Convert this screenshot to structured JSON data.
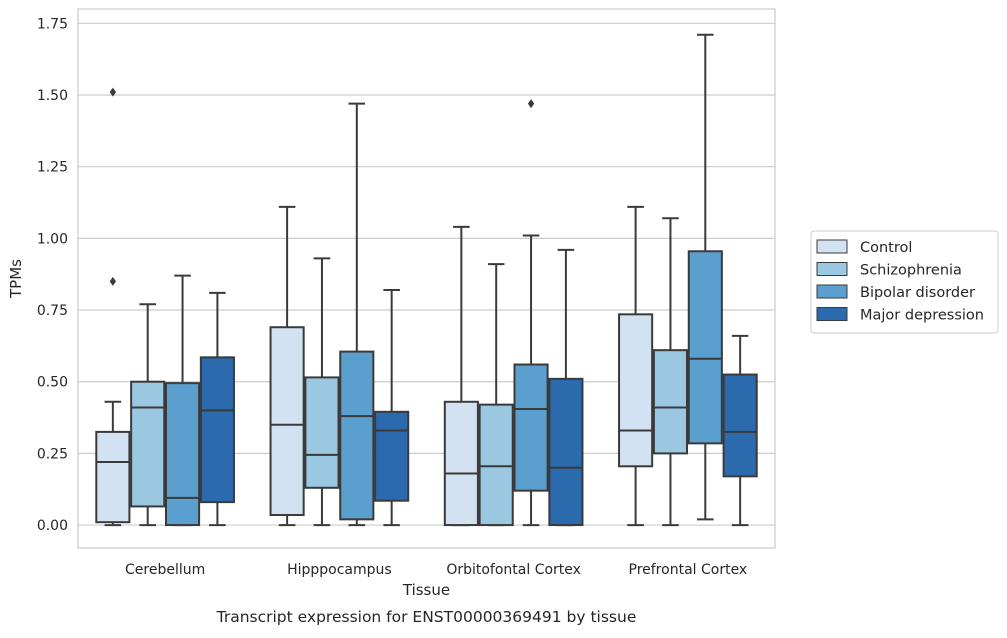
{
  "chart_data": {
    "type": "boxplot",
    "caption": "Transcript expression for ENST00000369491 by tissue",
    "xlabel": "Tissue",
    "ylabel": "TPMs",
    "ylim": [
      -0.08,
      1.8
    ],
    "yticks": [
      "0.00",
      "0.25",
      "0.50",
      "0.75",
      "1.00",
      "1.25",
      "1.50",
      "1.75"
    ],
    "ytick_values": [
      0,
      0.25,
      0.5,
      0.75,
      1.0,
      1.25,
      1.5,
      1.75
    ],
    "grid": true,
    "legend_position": "right",
    "categories": [
      "Cerebellum",
      "Hipppocampus",
      "Orbitofontal Cortex",
      "Prefrontal Cortex"
    ],
    "series": [
      {
        "name": "Control",
        "color": "#d2e2f2",
        "boxes": [
          {
            "whislo": 0.0,
            "q1": 0.01,
            "med": 0.22,
            "q3": 0.325,
            "whishi": 0.43,
            "fliers": [
              0.85,
              1.51
            ]
          },
          {
            "whislo": 0.0,
            "q1": 0.035,
            "med": 0.35,
            "q3": 0.69,
            "whishi": 1.11,
            "fliers": []
          },
          {
            "whislo": 0.0,
            "q1": 0.0,
            "med": 0.18,
            "q3": 0.43,
            "whishi": 1.04,
            "fliers": []
          },
          {
            "whislo": 0.0,
            "q1": 0.205,
            "med": 0.33,
            "q3": 0.735,
            "whishi": 1.11,
            "fliers": []
          }
        ]
      },
      {
        "name": "Schizophrenia",
        "color": "#9ac8e0",
        "boxes": [
          {
            "whislo": 0.0,
            "q1": 0.065,
            "med": 0.41,
            "q3": 0.5,
            "whishi": 0.77,
            "fliers": []
          },
          {
            "whislo": 0.0,
            "q1": 0.13,
            "med": 0.245,
            "q3": 0.515,
            "whishi": 0.93,
            "fliers": []
          },
          {
            "whislo": 0.0,
            "q1": 0.0,
            "med": 0.205,
            "q3": 0.42,
            "whishi": 0.91,
            "fliers": []
          },
          {
            "whislo": 0.0,
            "q1": 0.25,
            "med": 0.41,
            "q3": 0.61,
            "whishi": 1.07,
            "fliers": []
          }
        ]
      },
      {
        "name": "Bipolar disorder",
        "color": "#5a9fcd",
        "boxes": [
          {
            "whislo": 0.0,
            "q1": 0.0,
            "med": 0.095,
            "q3": 0.495,
            "whishi": 0.87,
            "fliers": []
          },
          {
            "whislo": 0.0,
            "q1": 0.02,
            "med": 0.38,
            "q3": 0.605,
            "whishi": 1.47,
            "fliers": []
          },
          {
            "whislo": 0.0,
            "q1": 0.12,
            "med": 0.405,
            "q3": 0.56,
            "whishi": 1.01,
            "fliers": [
              1.47
            ]
          },
          {
            "whislo": 0.02,
            "q1": 0.285,
            "med": 0.58,
            "q3": 0.955,
            "whishi": 1.71,
            "fliers": []
          }
        ]
      },
      {
        "name": "Major depression",
        "color": "#2a6aad",
        "boxes": [
          {
            "whislo": 0.0,
            "q1": 0.08,
            "med": 0.4,
            "q3": 0.585,
            "whishi": 0.81,
            "fliers": []
          },
          {
            "whislo": 0.0,
            "q1": 0.085,
            "med": 0.33,
            "q3": 0.395,
            "whishi": 0.82,
            "fliers": []
          },
          {
            "whislo": 0.0,
            "q1": 0.0,
            "med": 0.2,
            "q3": 0.51,
            "whishi": 0.96,
            "fliers": []
          },
          {
            "whislo": 0.0,
            "q1": 0.17,
            "med": 0.325,
            "q3": 0.525,
            "whishi": 0.66,
            "fliers": []
          }
        ]
      }
    ]
  }
}
